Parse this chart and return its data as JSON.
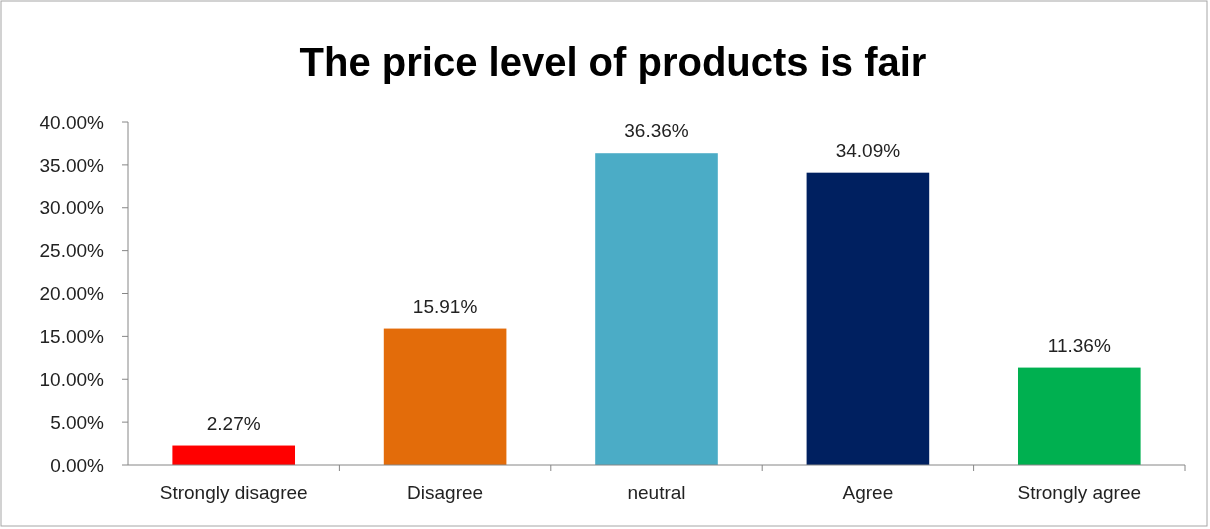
{
  "chart_data": {
    "type": "bar",
    "title": "The price level of products is fair",
    "categories": [
      "Strongly disagree",
      "Disagree",
      "neutral",
      "Agree",
      "Strongly agree"
    ],
    "values": [
      2.27,
      15.91,
      36.36,
      34.09,
      11.36
    ],
    "colors": [
      "#ff0000",
      "#e36c0a",
      "#4bacc6",
      "#002060",
      "#00b050"
    ],
    "value_labels": [
      "2.27%",
      "15.91%",
      "36.36%",
      "34.09%",
      "11.36%"
    ],
    "ylim": [
      0,
      40
    ],
    "yticks": [
      {
        "value": 0,
        "label": "0.00%"
      },
      {
        "value": 5,
        "label": "5.00%"
      },
      {
        "value": 10,
        "label": "10.00%"
      },
      {
        "value": 15,
        "label": "15.00%"
      },
      {
        "value": 20,
        "label": "20.00%"
      },
      {
        "value": 25,
        "label": "25.00%"
      },
      {
        "value": 30,
        "label": "30.00%"
      },
      {
        "value": 35,
        "label": "35.00%"
      },
      {
        "value": 40,
        "label": "40.00%"
      }
    ],
    "grid": false
  }
}
